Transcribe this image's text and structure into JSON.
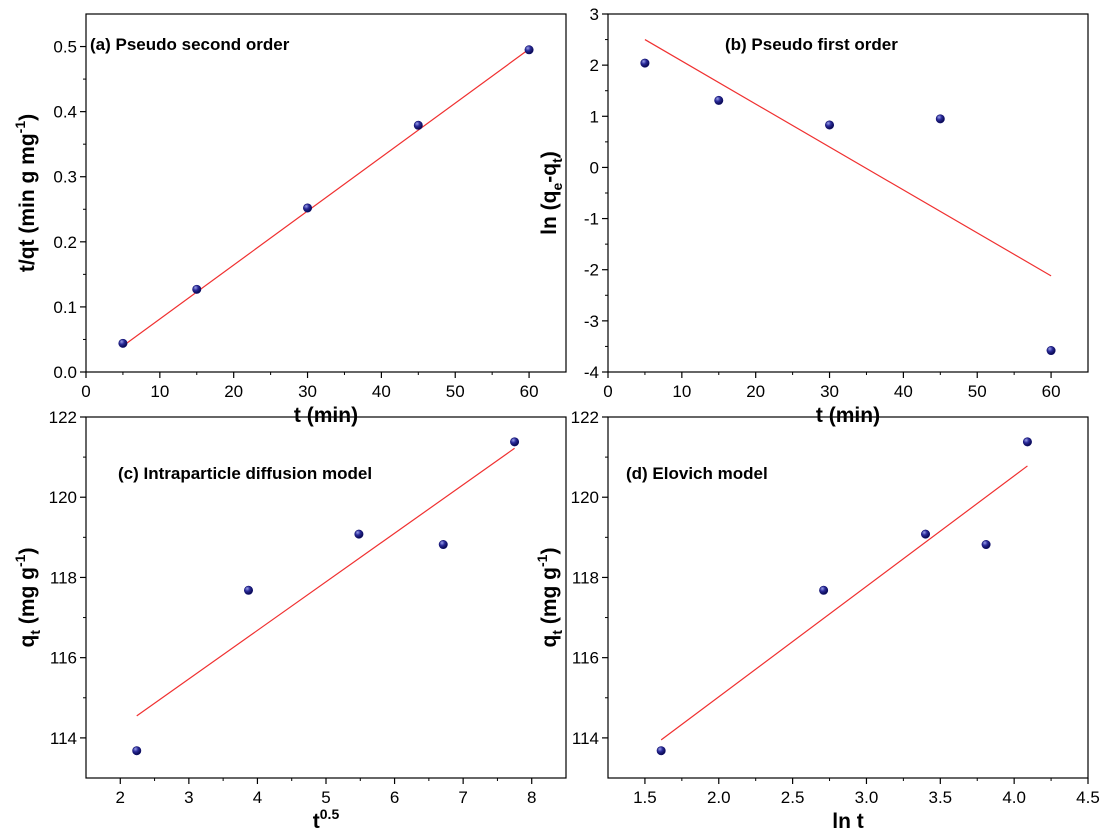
{
  "chart_data": [
    {
      "type": "scatter",
      "title": "(a) Pseudo second order",
      "xlabel": "t (min)",
      "ylabel": {
        "main": "t/qt (min g mg",
        "sup": "-1",
        "end": ")"
      },
      "xlim": [
        0,
        65
      ],
      "ylim": [
        0.0,
        0.55
      ],
      "xticks": [
        0,
        10,
        20,
        30,
        40,
        50,
        60
      ],
      "xtick_labels": [
        "0",
        "10",
        "20",
        "30",
        "40",
        "50",
        "60"
      ],
      "yticks": [
        0.0,
        0.1,
        0.2,
        0.3,
        0.4,
        0.5
      ],
      "ytick_labels": [
        "0.0",
        "0.1",
        "0.2",
        "0.3",
        "0.4",
        "0.5"
      ],
      "series": [
        {
          "kind": "points",
          "x": [
            5,
            15,
            30,
            45,
            60
          ],
          "y": [
            0.044,
            0.127,
            0.252,
            0.379,
            0.495
          ]
        },
        {
          "kind": "fit",
          "x": [
            5,
            60
          ],
          "y": [
            0.04,
            0.496
          ]
        }
      ],
      "colors": {
        "points": "#10106e",
        "fit": "#f03030"
      }
    },
    {
      "type": "scatter",
      "title": "(b) Pseudo first order",
      "xlabel": "t (min)",
      "ylabel": {
        "main": "ln (q",
        "sub1": "e",
        "mid": "-q",
        "sub2": "t",
        "end": ")"
      },
      "xlim": [
        0,
        65
      ],
      "ylim": [
        -4,
        3
      ],
      "xticks": [
        0,
        10,
        20,
        30,
        40,
        50,
        60
      ],
      "xtick_labels": [
        "0",
        "10",
        "20",
        "30",
        "40",
        "50",
        "60"
      ],
      "yticks": [
        -4,
        -3,
        -2,
        -1,
        0,
        1,
        2,
        3
      ],
      "ytick_labels": [
        "-4",
        "-3",
        "-2",
        "-1",
        "0",
        "1",
        "2",
        "3"
      ],
      "series": [
        {
          "kind": "points",
          "x": [
            5,
            15,
            30,
            45,
            60
          ],
          "y": [
            2.04,
            1.31,
            0.83,
            0.95,
            -3.58
          ]
        },
        {
          "kind": "fit",
          "x": [
            5,
            60
          ],
          "y": [
            2.5,
            -2.12
          ]
        }
      ],
      "colors": {
        "points": "#10106e",
        "fit": "#f03030"
      }
    },
    {
      "type": "scatter",
      "title": "(c) Intraparticle diffusion model",
      "xlabel": {
        "main": "t",
        "sup": "0.5"
      },
      "ylabel": {
        "main": "q",
        "sub": "t",
        "mid": " (mg g",
        "sup": "-1",
        "end": ")"
      },
      "xlim": [
        1.5,
        8.5
      ],
      "ylim": [
        113,
        122
      ],
      "xticks": [
        2,
        3,
        4,
        5,
        6,
        7,
        8
      ],
      "xtick_labels": [
        "2",
        "3",
        "4",
        "5",
        "6",
        "7",
        "8"
      ],
      "yticks": [
        114,
        116,
        118,
        120,
        122
      ],
      "ytick_labels": [
        "114",
        "116",
        "118",
        "120",
        "122"
      ],
      "series": [
        {
          "kind": "points",
          "x": [
            2.24,
            3.87,
            5.48,
            6.71,
            7.75
          ],
          "y": [
            113.68,
            117.68,
            119.08,
            118.82,
            121.38
          ]
        },
        {
          "kind": "fit",
          "x": [
            2.24,
            7.75
          ],
          "y": [
            114.55,
            121.22
          ]
        }
      ],
      "colors": {
        "points": "#10106e",
        "fit": "#f03030"
      }
    },
    {
      "type": "scatter",
      "title": "(d) Elovich model",
      "xlabel": "ln t",
      "ylabel": {
        "main": "q",
        "sub": "t",
        "mid": " (mg g",
        "sup": "-1",
        "end": ")"
      },
      "xlim": [
        1.25,
        4.5
      ],
      "ylim": [
        113,
        122
      ],
      "xticks": [
        1.5,
        2.0,
        2.5,
        3.0,
        3.5,
        4.0,
        4.5
      ],
      "xtick_labels": [
        "1.5",
        "2.0",
        "2.5",
        "3.0",
        "3.5",
        "4.0",
        "4.5"
      ],
      "yticks": [
        114,
        116,
        118,
        120,
        122
      ],
      "ytick_labels": [
        "114",
        "116",
        "118",
        "120",
        "122"
      ],
      "series": [
        {
          "kind": "points",
          "x": [
            1.61,
            2.71,
            3.4,
            3.81,
            4.09
          ],
          "y": [
            113.68,
            117.68,
            119.08,
            118.82,
            121.38
          ]
        },
        {
          "kind": "fit",
          "x": [
            1.61,
            4.09
          ],
          "y": [
            113.95,
            120.78
          ]
        }
      ],
      "colors": {
        "points": "#10106e",
        "fit": "#f03030"
      }
    }
  ]
}
